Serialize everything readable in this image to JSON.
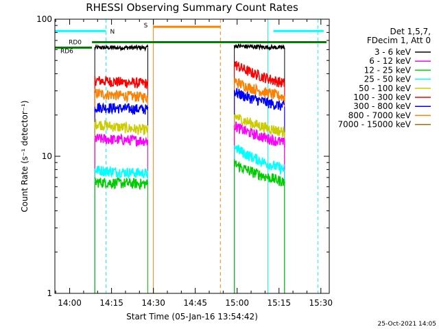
{
  "chart_data": {
    "type": "line",
    "title": "RHESSI Observing Summary Count Rates",
    "xlabel": "Start Time (05-Jan-16 13:54:42)",
    "ylabel": "Count Rate (s⁻¹ detector⁻¹)",
    "y_scale": "log",
    "ylim": [
      1,
      100
    ],
    "xlim": [
      "13:54:42",
      "15:33:00"
    ],
    "y_ticks": [
      "1",
      "10",
      "100"
    ],
    "x_ticks": [
      "14:00",
      "14:15",
      "14:30",
      "14:45",
      "15:00",
      "15:15",
      "15:30"
    ],
    "timestamp": "25-Oct-2021 14:05",
    "legend": {
      "placement": "right",
      "header": [
        "Det 1,5,7,",
        "FDecim 1, Att 0"
      ],
      "entries": [
        {
          "label": "3 - 6 keV",
          "color": "#000000"
        },
        {
          "label": "6 - 12 keV",
          "color": "#ff00ff"
        },
        {
          "label": "12 - 25 keV",
          "color": "#00cc00"
        },
        {
          "label": "25 - 50 keV",
          "color": "#00ffff"
        },
        {
          "label": "50 - 100 keV",
          "color": "#cccc00"
        },
        {
          "label": "100 - 300 keV",
          "color": "#ff0000"
        },
        {
          "label": "300 - 800 keV",
          "color": "#0000ff"
        },
        {
          "label": "800 - 7000 keV",
          "color": "#ff8000"
        },
        {
          "label": "7000 - 15000 keV",
          "color": "#996600"
        }
      ]
    },
    "annotations": {
      "RD0": {
        "label": "RD0",
        "start": "14:08",
        "end": "15:32",
        "level": 68,
        "color": "#008000"
      },
      "RD6": {
        "label": "RD6",
        "start": "13:54:42",
        "end": "14:08",
        "level": 62,
        "color": "#008000"
      },
      "N": {
        "label": "N",
        "segments": [
          [
            "13:54:42",
            "14:13"
          ],
          [
            "15:13",
            "15:31"
          ]
        ],
        "level": 82,
        "color": "#00ffff"
      },
      "S": {
        "label": "S",
        "segments": [
          [
            "14:30",
            "14:54"
          ]
        ],
        "level": 88,
        "color": "#ff8000"
      }
    },
    "vlines": [
      {
        "t": "14:13",
        "color": "#00ffff",
        "style": "dashed"
      },
      {
        "t": "14:30",
        "color": "#ff8000",
        "style": "solid"
      },
      {
        "t": "14:54",
        "color": "#ff8000",
        "style": "dashed"
      },
      {
        "t": "15:11",
        "color": "#00ffff",
        "style": "solid"
      },
      {
        "t": "15:29",
        "color": "#00ffff",
        "style": "dashed"
      }
    ],
    "segments": [
      {
        "start": "14:09",
        "end": "14:28",
        "series": [
          {
            "name": "3 - 6 keV",
            "start_level": 62,
            "end_level": 62
          },
          {
            "name": "100 - 300 keV",
            "start_level": 36,
            "end_level": 34
          },
          {
            "name": "800 - 7000 keV",
            "start_level": 29,
            "end_level": 27
          },
          {
            "name": "300 - 800 keV",
            "start_level": 23,
            "end_level": 22
          },
          {
            "name": "50 - 100 keV",
            "start_level": 17.5,
            "end_level": 15.5
          },
          {
            "name": "6 - 12 keV",
            "start_level": 13.5,
            "end_level": 13
          },
          {
            "name": "25 - 50 keV",
            "start_level": 8,
            "end_level": 7.5
          },
          {
            "name": "12 - 25 keV",
            "start_level": 6.5,
            "end_level": 6.3
          }
        ]
      },
      {
        "start": "14:59",
        "end": "15:17",
        "series": [
          {
            "name": "3 - 6 keV",
            "start_level": 64,
            "end_level": 62
          },
          {
            "name": "100 - 300 keV",
            "start_level": 48,
            "end_level": 34
          },
          {
            "name": "800 - 7000 keV",
            "start_level": 36,
            "end_level": 27
          },
          {
            "name": "300 - 800 keV",
            "start_level": 30,
            "end_level": 23
          },
          {
            "name": "50 - 100 keV",
            "start_level": 20,
            "end_level": 15
          },
          {
            "name": "6 - 12 keV",
            "start_level": 17,
            "end_level": 12.5
          },
          {
            "name": "25 - 50 keV",
            "start_level": 12,
            "end_level": 8
          },
          {
            "name": "12 - 25 keV",
            "start_level": 9,
            "end_level": 6.5
          }
        ]
      }
    ]
  }
}
